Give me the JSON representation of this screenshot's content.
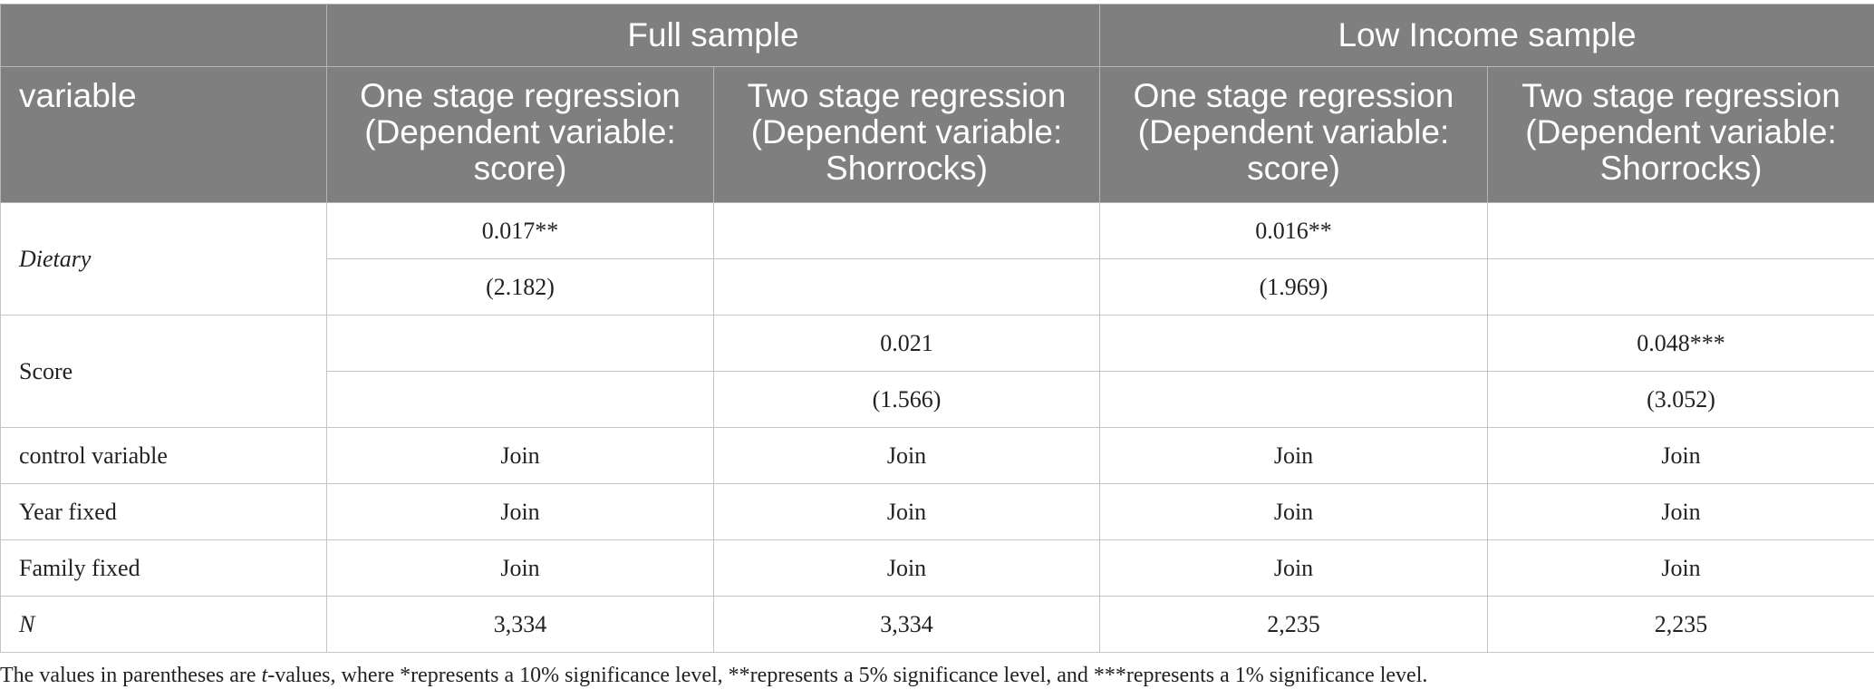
{
  "table": {
    "groups": [
      "Full sample",
      "Low Income sample"
    ],
    "variable_header": "variable",
    "columns": [
      "One stage regression (Dependent variable: score)",
      "Two stage regression (Dependent variable: Shorrocks)",
      "One stage regression (Dependent variable: score)",
      "Two stage regression (Dependent variable: Shorrocks)"
    ],
    "rows": [
      {
        "label": "Dietary",
        "italic": true,
        "lines": [
          [
            "0.017**",
            null,
            "0.016**",
            null
          ],
          [
            "(2.182)",
            null,
            "(1.969)",
            null
          ]
        ]
      },
      {
        "label": "Score",
        "italic": false,
        "lines": [
          [
            null,
            "0.021",
            null,
            "0.048***"
          ],
          [
            null,
            "(1.566)",
            null,
            "(3.052)"
          ]
        ]
      },
      {
        "label": "control variable",
        "italic": false,
        "lines": [
          [
            "Join",
            "Join",
            "Join",
            "Join"
          ]
        ]
      },
      {
        "label": "Year fixed",
        "italic": false,
        "lines": [
          [
            "Join",
            "Join",
            "Join",
            "Join"
          ]
        ]
      },
      {
        "label": "Family fixed",
        "italic": false,
        "lines": [
          [
            "Join",
            "Join",
            "Join",
            "Join"
          ]
        ]
      },
      {
        "label": "N",
        "italic": true,
        "lines": [
          [
            "3,334",
            "3,334",
            "2,235",
            "2,235"
          ]
        ]
      }
    ]
  },
  "footnote": {
    "before": "The values in parentheses are ",
    "italic": "t",
    "after": "-values, where *represents a 10% significance level, **represents a 5% significance level, and ***represents a 1% significance level."
  }
}
